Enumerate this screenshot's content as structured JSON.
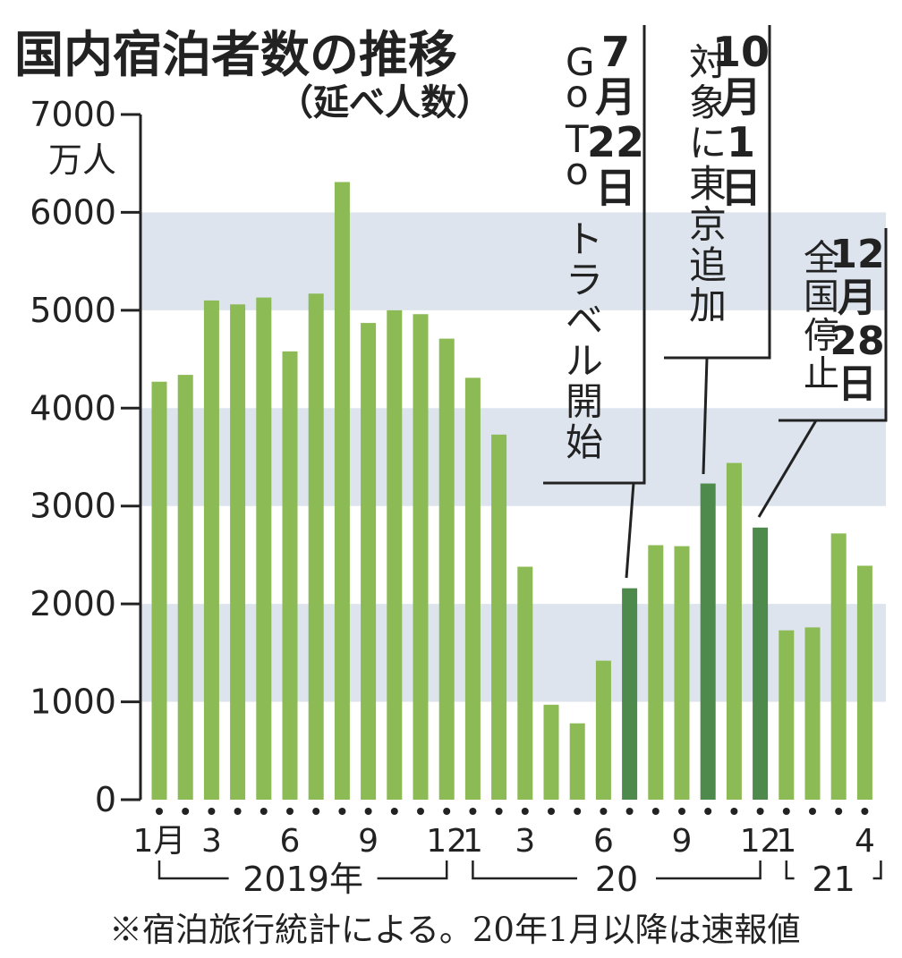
{
  "chart_data": {
    "type": "bar",
    "title": "国内宿泊者数の推移",
    "subtitle": "（延べ人数）",
    "ylabel": "万人",
    "ylim": [
      0,
      7000
    ],
    "yticks": [
      "7000",
      "6000",
      "5000",
      "4000",
      "3000",
      "2000",
      "1000",
      "0"
    ],
    "ytick_values": [
      7000,
      6000,
      5000,
      4000,
      3000,
      2000,
      1000,
      0
    ],
    "grid": "alternating horizontal bands",
    "colors": {
      "bar": "#8cba55",
      "highlight": "#4e8a4b",
      "band": "#dde4ee"
    },
    "values": [
      4270,
      4340,
      5100,
      5060,
      5130,
      4580,
      5170,
      6310,
      4870,
      5000,
      4960,
      4710,
      4310,
      3730,
      2380,
      970,
      780,
      1420,
      2160,
      2600,
      2590,
      3230,
      3440,
      2780,
      1730,
      1760,
      2720,
      2390
    ],
    "highlight_indices": [
      18,
      21,
      23
    ],
    "x_tick_labels": [
      {
        "i": 0,
        "text": "1月"
      },
      {
        "i": 2,
        "text": "3"
      },
      {
        "i": 5,
        "text": "6"
      },
      {
        "i": 8,
        "text": "9"
      },
      {
        "i": 11,
        "text": "12"
      },
      {
        "i": 12,
        "text": "1"
      },
      {
        "i": 14,
        "text": "3"
      },
      {
        "i": 17,
        "text": "6"
      },
      {
        "i": 20,
        "text": "9"
      },
      {
        "i": 23,
        "text": "12"
      },
      {
        "i": 24,
        "text": "1"
      },
      {
        "i": 27,
        "text": "4"
      }
    ],
    "years": [
      {
        "label": "2019年",
        "from": 0,
        "to": 11
      },
      {
        "label": "20",
        "from": 12,
        "to": 23
      },
      {
        "label": "21",
        "from": 24,
        "to": 27
      }
    ],
    "annotations": [
      {
        "index": 18,
        "date_lines": [
          "7",
          "月",
          "22",
          "日"
        ],
        "text_columns": [
          "Go To",
          "トラベル開始"
        ]
      },
      {
        "index": 21,
        "date_lines": [
          "10",
          "月",
          "1",
          "日"
        ],
        "text_columns": [
          "対象に東京追加"
        ]
      },
      {
        "index": 23,
        "date_lines": [
          "12",
          "月",
          "28",
          "日"
        ],
        "text_columns": [
          "全国停止"
        ]
      }
    ],
    "note": "※宿泊旅行統計による。20年1月以降は速報値"
  }
}
